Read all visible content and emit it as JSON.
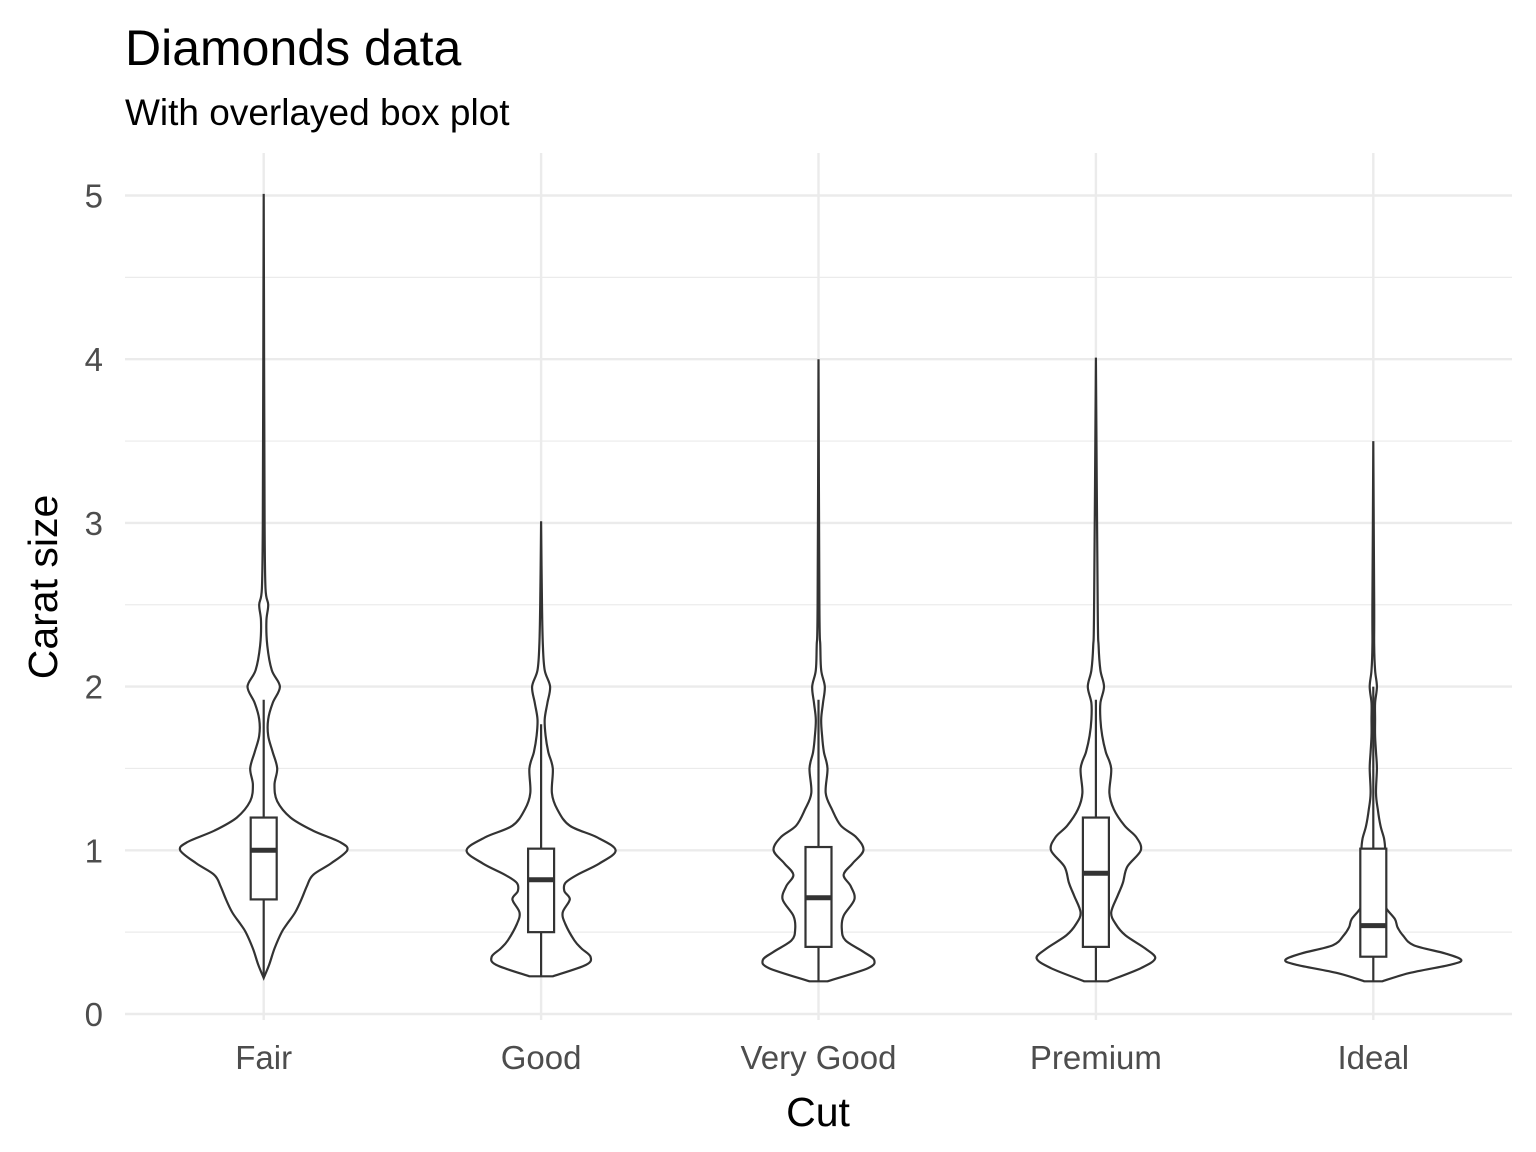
{
  "chart_data": {
    "type": "violin",
    "title": "Diamonds data",
    "subtitle": "With overlayed box plot",
    "xlabel": "Cut",
    "ylabel": "Carat size",
    "ylim": [
      0,
      5.1
    ],
    "yticks": [
      0,
      1,
      2,
      3,
      4,
      5
    ],
    "grid": true,
    "categories": [
      "Fair",
      "Good",
      "Very Good",
      "Premium",
      "Ideal"
    ],
    "series": [
      {
        "category": "Fair",
        "min": 0.22,
        "max": 5.01,
        "box": {
          "q1": 0.7,
          "median": 1.0,
          "q3": 1.2,
          "whisker_low": 0.22,
          "whisker_high": 1.92
        },
        "density": [
          [
            0.22,
            0.0
          ],
          [
            0.3,
            0.06
          ],
          [
            0.4,
            0.12
          ],
          [
            0.5,
            0.2
          ],
          [
            0.55,
            0.26
          ],
          [
            0.62,
            0.35
          ],
          [
            0.7,
            0.42
          ],
          [
            0.78,
            0.48
          ],
          [
            0.85,
            0.55
          ],
          [
            0.92,
            0.75
          ],
          [
            1.0,
            0.93
          ],
          [
            1.05,
            0.85
          ],
          [
            1.12,
            0.55
          ],
          [
            1.2,
            0.3
          ],
          [
            1.3,
            0.15
          ],
          [
            1.4,
            0.12
          ],
          [
            1.5,
            0.15
          ],
          [
            1.6,
            0.1
          ],
          [
            1.7,
            0.05
          ],
          [
            1.8,
            0.05
          ],
          [
            1.9,
            0.1
          ],
          [
            2.0,
            0.18
          ],
          [
            2.1,
            0.09
          ],
          [
            2.25,
            0.04
          ],
          [
            2.4,
            0.03
          ],
          [
            2.5,
            0.05
          ],
          [
            2.6,
            0.02
          ],
          [
            3.0,
            0.01
          ],
          [
            4.0,
            0.005
          ],
          [
            5.01,
            0.0
          ]
        ]
      },
      {
        "category": "Good",
        "min": 0.23,
        "max": 3.01,
        "box": {
          "q1": 0.5,
          "median": 0.82,
          "q3": 1.01,
          "whisker_low": 0.23,
          "whisker_high": 1.77
        },
        "density": [
          [
            0.23,
            0.13
          ],
          [
            0.3,
            0.5
          ],
          [
            0.35,
            0.55
          ],
          [
            0.4,
            0.45
          ],
          [
            0.45,
            0.37
          ],
          [
            0.55,
            0.27
          ],
          [
            0.62,
            0.24
          ],
          [
            0.7,
            0.32
          ],
          [
            0.75,
            0.26
          ],
          [
            0.8,
            0.27
          ],
          [
            0.85,
            0.4
          ],
          [
            0.92,
            0.65
          ],
          [
            1.0,
            0.83
          ],
          [
            1.08,
            0.62
          ],
          [
            1.15,
            0.32
          ],
          [
            1.25,
            0.18
          ],
          [
            1.35,
            0.12
          ],
          [
            1.5,
            0.13
          ],
          [
            1.6,
            0.08
          ],
          [
            1.7,
            0.05
          ],
          [
            1.8,
            0.04
          ],
          [
            1.9,
            0.07
          ],
          [
            2.0,
            0.1
          ],
          [
            2.1,
            0.04
          ],
          [
            2.25,
            0.02
          ],
          [
            2.5,
            0.01
          ],
          [
            3.01,
            0.0
          ]
        ]
      },
      {
        "category": "Very Good",
        "min": 0.2,
        "max": 4.0,
        "box": {
          "q1": 0.41,
          "median": 0.71,
          "q3": 1.02,
          "whisker_low": 0.2,
          "whisker_high": 1.92
        },
        "density": [
          [
            0.2,
            0.1
          ],
          [
            0.28,
            0.55
          ],
          [
            0.33,
            0.62
          ],
          [
            0.38,
            0.5
          ],
          [
            0.45,
            0.3
          ],
          [
            0.52,
            0.26
          ],
          [
            0.6,
            0.28
          ],
          [
            0.7,
            0.4
          ],
          [
            0.78,
            0.36
          ],
          [
            0.85,
            0.28
          ],
          [
            0.92,
            0.38
          ],
          [
            1.0,
            0.5
          ],
          [
            1.08,
            0.42
          ],
          [
            1.15,
            0.25
          ],
          [
            1.25,
            0.15
          ],
          [
            1.35,
            0.08
          ],
          [
            1.5,
            0.1
          ],
          [
            1.6,
            0.06
          ],
          [
            1.7,
            0.04
          ],
          [
            1.8,
            0.03
          ],
          [
            1.9,
            0.05
          ],
          [
            2.0,
            0.07
          ],
          [
            2.1,
            0.03
          ],
          [
            2.25,
            0.02
          ],
          [
            2.5,
            0.01
          ],
          [
            4.0,
            0.0
          ]
        ]
      },
      {
        "category": "Premium",
        "min": 0.2,
        "max": 4.01,
        "box": {
          "q1": 0.41,
          "median": 0.86,
          "q3": 1.2,
          "whisker_low": 0.2,
          "whisker_high": 1.92
        },
        "density": [
          [
            0.2,
            0.13
          ],
          [
            0.28,
            0.5
          ],
          [
            0.34,
            0.66
          ],
          [
            0.4,
            0.55
          ],
          [
            0.48,
            0.33
          ],
          [
            0.55,
            0.22
          ],
          [
            0.62,
            0.17
          ],
          [
            0.72,
            0.24
          ],
          [
            0.8,
            0.3
          ],
          [
            0.9,
            0.35
          ],
          [
            1.0,
            0.5
          ],
          [
            1.08,
            0.45
          ],
          [
            1.15,
            0.32
          ],
          [
            1.25,
            0.2
          ],
          [
            1.35,
            0.15
          ],
          [
            1.5,
            0.17
          ],
          [
            1.6,
            0.11
          ],
          [
            1.7,
            0.07
          ],
          [
            1.8,
            0.05
          ],
          [
            1.9,
            0.05
          ],
          [
            2.0,
            0.09
          ],
          [
            2.1,
            0.05
          ],
          [
            2.25,
            0.03
          ],
          [
            2.5,
            0.02
          ],
          [
            4.01,
            0.0
          ]
        ]
      },
      {
        "category": "Ideal",
        "min": 0.2,
        "max": 3.5,
        "box": {
          "q1": 0.35,
          "median": 0.54,
          "q3": 1.01,
          "whisker_low": 0.2,
          "whisker_high": 2.0
        },
        "density": [
          [
            0.2,
            0.1
          ],
          [
            0.25,
            0.4
          ],
          [
            0.3,
            0.85
          ],
          [
            0.33,
            0.98
          ],
          [
            0.37,
            0.8
          ],
          [
            0.42,
            0.45
          ],
          [
            0.48,
            0.33
          ],
          [
            0.53,
            0.27
          ],
          [
            0.58,
            0.24
          ],
          [
            0.65,
            0.14
          ],
          [
            0.72,
            0.12
          ],
          [
            0.78,
            0.14
          ],
          [
            0.85,
            0.12
          ],
          [
            0.92,
            0.1
          ],
          [
            1.0,
            0.13
          ],
          [
            1.07,
            0.12
          ],
          [
            1.15,
            0.08
          ],
          [
            1.25,
            0.05
          ],
          [
            1.35,
            0.03
          ],
          [
            1.5,
            0.04
          ],
          [
            1.6,
            0.03
          ],
          [
            1.7,
            0.02
          ],
          [
            1.8,
            0.02
          ],
          [
            1.9,
            0.02
          ],
          [
            2.0,
            0.04
          ],
          [
            2.1,
            0.02
          ],
          [
            2.25,
            0.01
          ],
          [
            2.5,
            0.01
          ],
          [
            3.5,
            0.0
          ]
        ]
      }
    ]
  }
}
